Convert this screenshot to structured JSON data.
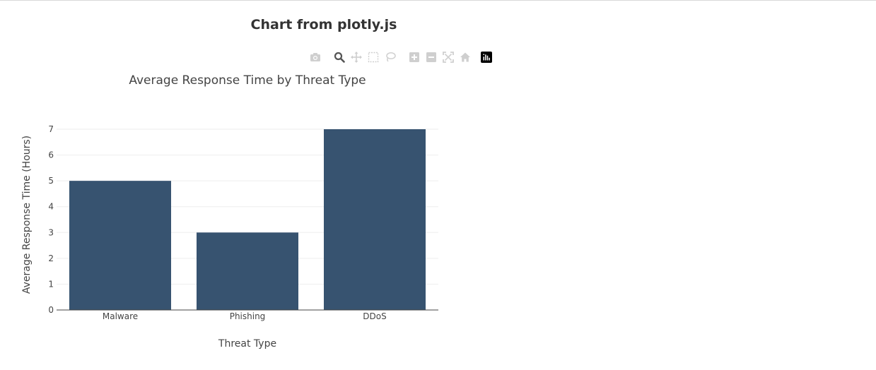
{
  "page": {
    "heading": "Chart from plotly.js"
  },
  "modebar": {
    "buttons": [
      {
        "name": "camera-icon",
        "group": 1
      },
      {
        "name": "zoom-icon",
        "group": 2,
        "active": true
      },
      {
        "name": "pan-icon",
        "group": 2
      },
      {
        "name": "box-select-icon",
        "group": 2
      },
      {
        "name": "lasso-select-icon",
        "group": 2
      },
      {
        "name": "zoom-in-icon",
        "group": 3
      },
      {
        "name": "zoom-out-icon",
        "group": 3
      },
      {
        "name": "autoscale-icon",
        "group": 3
      },
      {
        "name": "reset-axes-icon",
        "group": 3
      }
    ],
    "logo": "plotly-logo-icon"
  },
  "chart_data": {
    "type": "bar",
    "title": "Average Response Time by Threat Type",
    "xlabel": "Threat Type",
    "ylabel": "Average Response Time (Hours)",
    "categories": [
      "Malware",
      "Phishing",
      "DDoS"
    ],
    "values": [
      5,
      3,
      7
    ],
    "ylim": [
      0,
      7
    ],
    "yticks": [
      0,
      1,
      2,
      3,
      4,
      5,
      6,
      7
    ],
    "grid": true,
    "bar_color": "#375370",
    "grid_color": "#eeeeee",
    "axis_color": "#444444"
  }
}
